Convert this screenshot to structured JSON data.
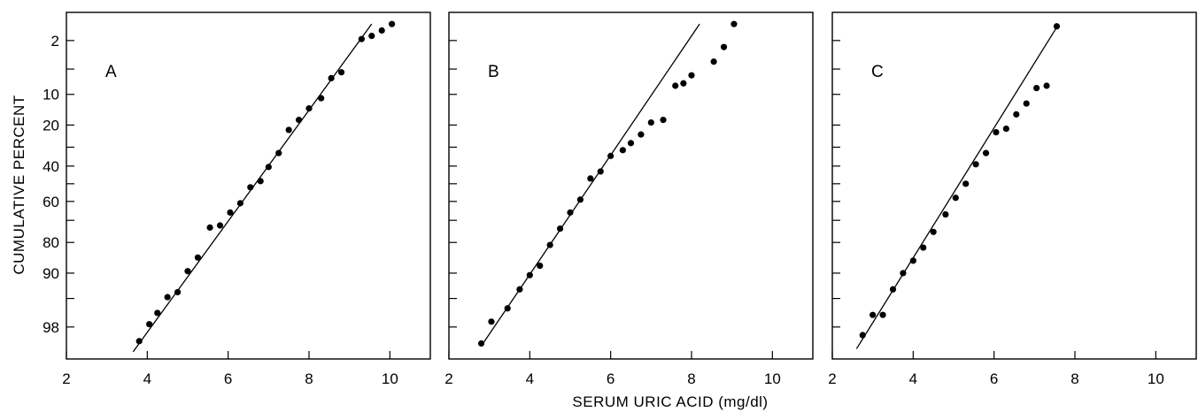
{
  "chart_data": {
    "type": "scatter",
    "description_scale": "normal probability (cumulative percent) vs serum uric acid",
    "xlabel": "SERUM URIC ACID (mg/dl)",
    "ylabel": "CUMULATIVE PERCENT",
    "x_ticks": [
      2,
      4,
      6,
      8,
      10
    ],
    "x_tick_labels": [
      "2",
      "4",
      "6",
      "8",
      "10"
    ],
    "xlim": [
      2,
      11
    ],
    "y_scale": "probit",
    "y_tick_values": [
      2,
      10,
      20,
      40,
      60,
      80,
      90,
      98
    ],
    "y_tick_labels": [
      "2",
      "10",
      "20",
      "40",
      "60",
      "80",
      "90",
      "98"
    ],
    "y_minor_ticks": [
      5,
      30,
      50,
      70,
      95
    ],
    "ylim": [
      0.7,
      99.4
    ],
    "y_direction": "increasing downward",
    "panels": [
      {
        "label": "A",
        "points": [
          [
            3.8,
            98.8
          ],
          [
            4.05,
            97.8
          ],
          [
            4.25,
            96.8
          ],
          [
            4.5,
            94.8
          ],
          [
            4.75,
            94.0
          ],
          [
            5.0,
            89.5
          ],
          [
            5.25,
            85.5
          ],
          [
            5.55,
            73.5
          ],
          [
            5.8,
            72.5
          ],
          [
            6.05,
            66.0
          ],
          [
            6.3,
            61.0
          ],
          [
            6.55,
            52.0
          ],
          [
            6.8,
            48.5
          ],
          [
            7.0,
            40.5
          ],
          [
            7.25,
            33.0
          ],
          [
            7.5,
            22.0
          ],
          [
            7.75,
            18.0
          ],
          [
            8.0,
            14.0
          ],
          [
            8.3,
            11.0
          ],
          [
            8.55,
            6.5
          ],
          [
            8.8,
            5.5
          ],
          [
            9.3,
            1.9
          ],
          [
            9.55,
            1.7
          ],
          [
            9.8,
            1.4
          ],
          [
            10.05,
            1.1
          ]
        ],
        "fit_line": [
          [
            3.65,
            99.2
          ],
          [
            9.55,
            1.1
          ]
        ]
      },
      {
        "label": "B",
        "points": [
          [
            2.8,
            98.9
          ],
          [
            3.05,
            97.6
          ],
          [
            3.45,
            96.3
          ],
          [
            3.75,
            93.5
          ],
          [
            4.0,
            90.5
          ],
          [
            4.25,
            88.0
          ],
          [
            4.5,
            81.0
          ],
          [
            4.75,
            74.0
          ],
          [
            5.0,
            66.0
          ],
          [
            5.25,
            59.0
          ],
          [
            5.5,
            47.0
          ],
          [
            5.75,
            43.0
          ],
          [
            6.0,
            34.5
          ],
          [
            6.3,
            31.5
          ],
          [
            6.5,
            28.0
          ],
          [
            6.75,
            24.0
          ],
          [
            7.0,
            19.0
          ],
          [
            7.3,
            18.0
          ],
          [
            7.6,
            8.0
          ],
          [
            7.8,
            7.5
          ],
          [
            8.0,
            6.0
          ],
          [
            8.55,
            4.0
          ],
          [
            8.8,
            2.5
          ],
          [
            9.05,
            1.1
          ]
        ],
        "fit_line": [
          [
            2.8,
            99.0
          ],
          [
            8.2,
            1.1
          ]
        ]
      },
      {
        "label": "C",
        "points": [
          [
            2.75,
            98.5
          ],
          [
            3.0,
            97.0
          ],
          [
            3.25,
            97.0
          ],
          [
            3.5,
            93.5
          ],
          [
            3.75,
            90.0
          ],
          [
            4.0,
            86.5
          ],
          [
            4.25,
            82.0
          ],
          [
            4.5,
            75.5
          ],
          [
            4.8,
            67.0
          ],
          [
            5.05,
            58.0
          ],
          [
            5.3,
            50.0
          ],
          [
            5.55,
            39.0
          ],
          [
            5.8,
            33.0
          ],
          [
            6.05,
            23.0
          ],
          [
            6.3,
            21.5
          ],
          [
            6.55,
            16.0
          ],
          [
            6.8,
            12.5
          ],
          [
            7.05,
            8.5
          ],
          [
            7.3,
            8.0
          ],
          [
            7.55,
            1.2
          ]
        ],
        "fit_line": [
          [
            2.6,
            99.1
          ],
          [
            7.6,
            1.1
          ]
        ]
      }
    ]
  }
}
